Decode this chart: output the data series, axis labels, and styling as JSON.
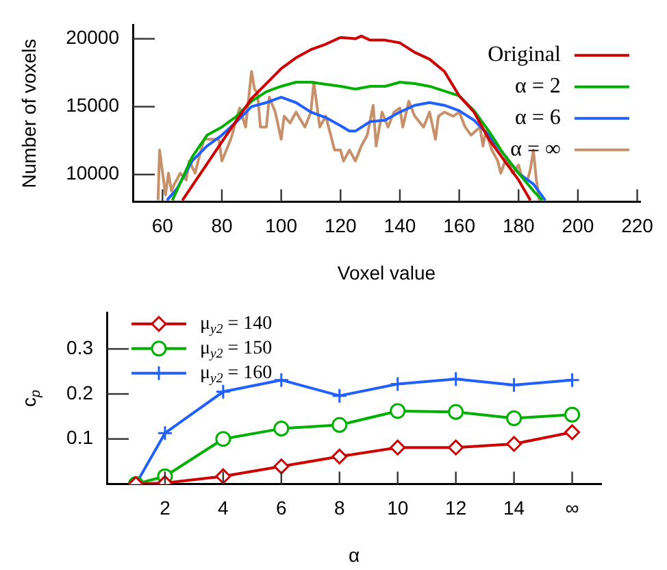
{
  "chart_data": [
    {
      "type": "line",
      "xlabel": "Voxel value",
      "ylabel": "Number of voxels",
      "xlim": [
        50,
        221
      ],
      "xticks": [
        60,
        80,
        100,
        120,
        140,
        160,
        180,
        200,
        220
      ],
      "ylim": [
        8000,
        21000
      ],
      "yticks": [
        10000,
        15000,
        20000
      ],
      "grid": false,
      "legend": "top right",
      "marker": "none",
      "line_style": "solid",
      "series": [
        {
          "name": "Original",
          "color": "#cc0000",
          "x": [
            66.7,
            73.8,
            80,
            90,
            100,
            105,
            110,
            115,
            120,
            125,
            127,
            130,
            135,
            140,
            145,
            150,
            155,
            160,
            165,
            170,
            175,
            180,
            184
          ],
          "values": [
            8100,
            10400,
            12400,
            15600,
            17800,
            18600,
            19200,
            19600,
            20100,
            20000,
            20200,
            19900,
            19900,
            19700,
            19000,
            18500,
            17600,
            15800,
            14600,
            12600,
            11100,
            9600,
            8100
          ]
        },
        {
          "name": "α = 2",
          "color": "#00b000",
          "x": [
            63.3,
            70,
            75,
            80,
            85,
            90,
            95,
            100,
            105,
            110,
            120,
            125,
            130,
            135,
            140,
            145,
            150,
            160,
            165,
            170,
            175,
            180,
            185,
            188
          ],
          "values": [
            8100,
            11300,
            12900,
            13500,
            14300,
            15400,
            16100,
            16500,
            16800,
            16800,
            16500,
            16300,
            16500,
            16500,
            16800,
            16700,
            16500,
            15800,
            14700,
            13200,
            11500,
            10100,
            8800,
            8100
          ]
        },
        {
          "name": "α = 6",
          "color": "#2060ff",
          "x": [
            61.5,
            65,
            70,
            75,
            80,
            85,
            90,
            95,
            100,
            105,
            110,
            115,
            120,
            123,
            125,
            130,
            135,
            140,
            145,
            150,
            155,
            160,
            165,
            170,
            175,
            180,
            185,
            189
          ],
          "values": [
            8100,
            9000,
            11000,
            12100,
            12900,
            13900,
            15000,
            15300,
            15700,
            15300,
            14600,
            14200,
            13600,
            13200,
            13200,
            13900,
            14000,
            14600,
            15100,
            15300,
            15100,
            14700,
            14000,
            12900,
            11500,
            10100,
            9300,
            8100
          ]
        },
        {
          "name": "α = ∞",
          "color": "#c8906a",
          "x": [
            58.5,
            59,
            61,
            62,
            63,
            64,
            66,
            68,
            69,
            71,
            72,
            74,
            79,
            80,
            83,
            86,
            88,
            90,
            91,
            92,
            93,
            95,
            96,
            98,
            100,
            101,
            103,
            105,
            108,
            110,
            111,
            113,
            115,
            118,
            120,
            121,
            123,
            125,
            127,
            129,
            131,
            132,
            134,
            136,
            138,
            140,
            141,
            143,
            145,
            148,
            150,
            152,
            153,
            155,
            158,
            160,
            162,
            164,
            167,
            168,
            169,
            171,
            173,
            174,
            176,
            178,
            180,
            181,
            183,
            184,
            185,
            186,
            187
          ],
          "values": [
            8100,
            11800,
            8500,
            10100,
            8800,
            9300,
            10100,
            9600,
            11000,
            10100,
            11000,
            12600,
            12600,
            11000,
            12600,
            14900,
            13500,
            17600,
            16300,
            16000,
            13500,
            13500,
            15700,
            14600,
            12600,
            14300,
            13800,
            14600,
            13500,
            14600,
            16800,
            13500,
            14300,
            11800,
            11800,
            11000,
            11800,
            11000,
            12100,
            12900,
            15100,
            12100,
            14600,
            13500,
            14600,
            14900,
            13500,
            15400,
            14300,
            13500,
            14600,
            12600,
            14300,
            14600,
            14300,
            14600,
            13500,
            12900,
            13500,
            12100,
            13200,
            11800,
            11000,
            10100,
            11300,
            10100,
            10700,
            9900,
            9600,
            10400,
            11800,
            9600,
            8100
          ]
        }
      ]
    },
    {
      "type": "line",
      "xlabel": "α",
      "ylabel": "c$_{p}$",
      "xlim": [
        0,
        17
      ],
      "xticks": [
        2,
        4,
        6,
        8,
        10,
        12,
        14,
        {
          "value": 16,
          "label": "∞"
        }
      ],
      "ylim": [
        0,
        0.38
      ],
      "yticks": [
        0.1,
        0.2,
        0.3
      ],
      "grid": false,
      "legend": "top left",
      "line_style": "solid",
      "x": [
        1,
        2,
        4,
        6,
        8,
        10,
        12,
        14,
        16
      ],
      "series": [
        {
          "name": "μ$_{y2}$ = 140",
          "color": "#cc0000",
          "marker": "diamond",
          "values": [
            0,
            0.002,
            0.017,
            0.039,
            0.061,
            0.081,
            0.081,
            0.089,
            0.115
          ]
        },
        {
          "name": "μ$_{y2}$ = 150",
          "color": "#00b000",
          "marker": "circle",
          "values": [
            0,
            0.017,
            0.1,
            0.123,
            0.131,
            0.162,
            0.16,
            0.146,
            0.154
          ]
        },
        {
          "name": "μ$_{y2}$ = 160",
          "color": "#2060ff",
          "marker": "cross",
          "values": [
            0,
            0.113,
            0.205,
            0.231,
            0.196,
            0.222,
            0.233,
            0.22,
            0.231
          ]
        }
      ]
    }
  ]
}
